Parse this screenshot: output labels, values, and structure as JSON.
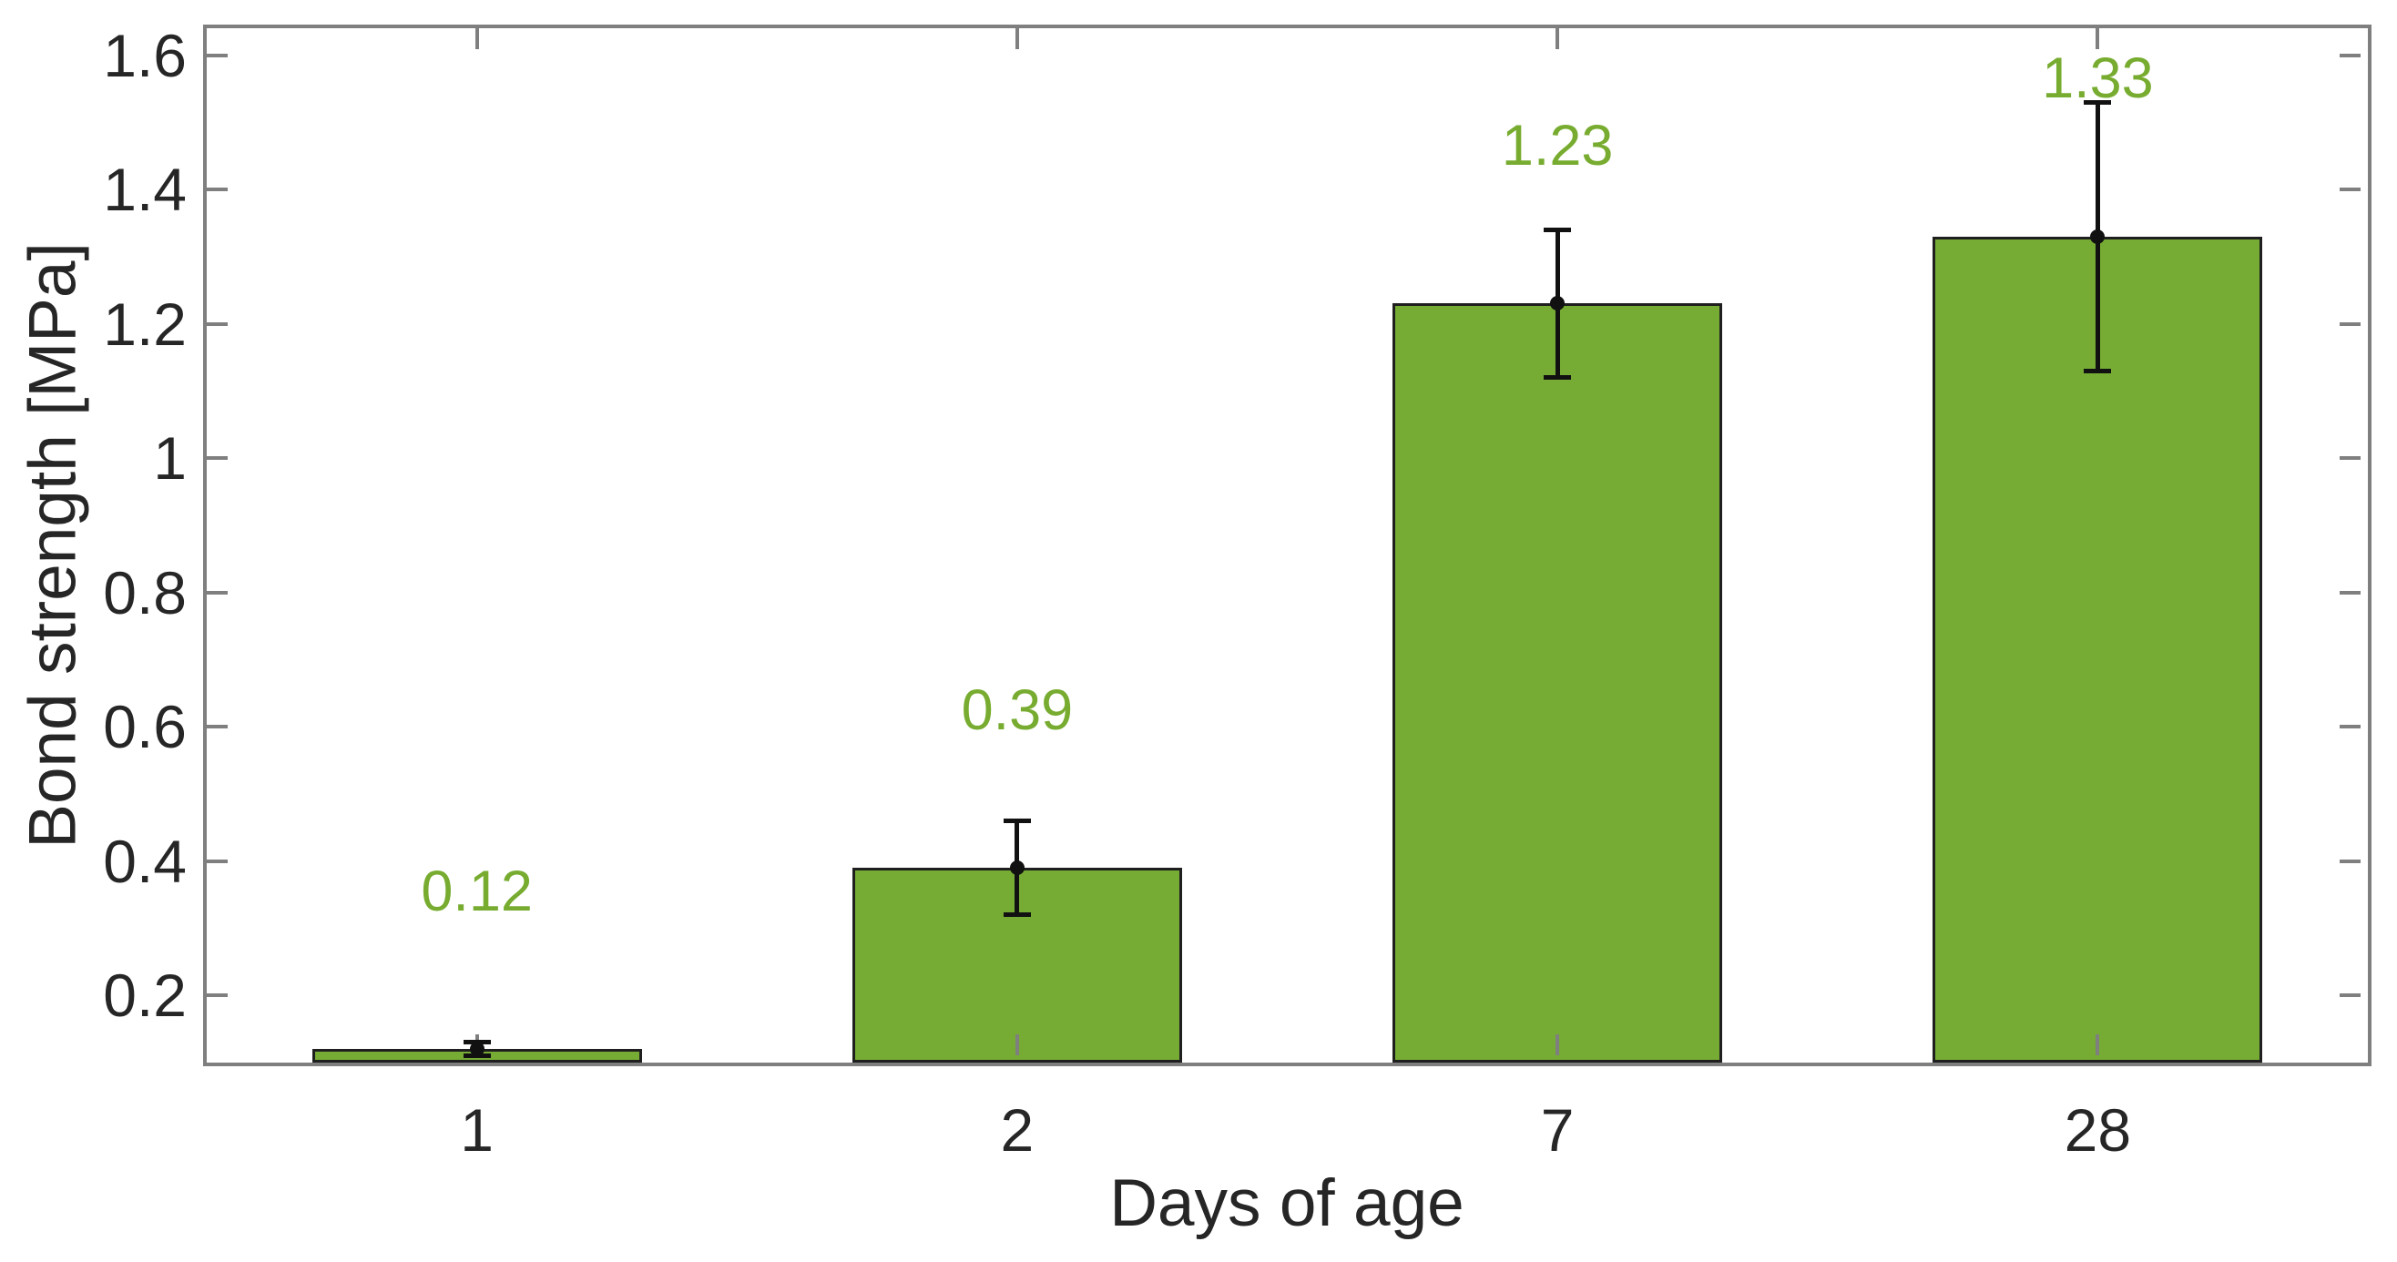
{
  "chart_data": {
    "type": "bar",
    "title": "",
    "xlabel": "Days of age",
    "ylabel": "Bond strength [MPa]",
    "categories": [
      "1",
      "2",
      "7",
      "28"
    ],
    "values": [
      0.12,
      0.39,
      1.23,
      1.33
    ],
    "errors": [
      0.01,
      0.07,
      0.11,
      0.2
    ],
    "data_labels": [
      "0.12",
      "0.39",
      "1.23",
      "1.33"
    ],
    "ylim": [
      0.1,
      1.64
    ],
    "yticks": [
      0.2,
      0.4,
      0.6,
      0.8,
      1,
      1.2,
      1.4,
      1.6
    ],
    "ytick_labels": [
      "0.2",
      "0.4",
      "0.6",
      "0.8",
      "1",
      "1.2",
      "1.4",
      "1.6"
    ],
    "grid": false,
    "legend": null,
    "box": true,
    "tick_direction": "in",
    "bar_width_ratio": 0.61,
    "label_value_offset": 0.235,
    "colors": {
      "bar_fill": "#76AC34",
      "bar_edge": "#1F1F1F",
      "error_bar": "#111111",
      "data_label": "#77AC30",
      "axis_frame": "#7F7F7F",
      "tick_text": "#262626",
      "background": "#FFFFFF"
    }
  }
}
